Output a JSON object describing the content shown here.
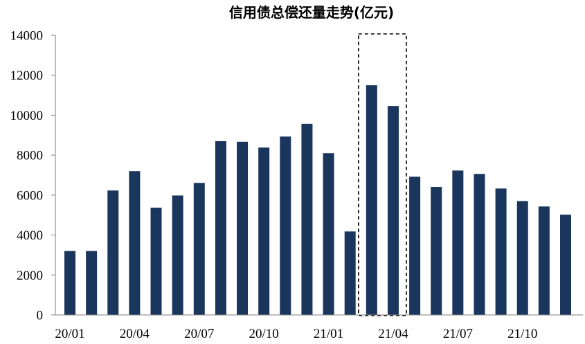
{
  "chart_data": {
    "type": "bar",
    "title": "信用债总偿还量走势(亿元)",
    "xlabel": "",
    "ylabel": "",
    "ylim": [
      0,
      14000
    ],
    "yticks": [
      0,
      2000,
      4000,
      6000,
      8000,
      10000,
      12000,
      14000
    ],
    "xtick_labels": [
      "20/01",
      "20/04",
      "20/07",
      "20/10",
      "21/01",
      "21/04",
      "21/07",
      "21/10"
    ],
    "categories": [
      "20/01",
      "20/02",
      "20/03",
      "20/04",
      "20/05",
      "20/06",
      "20/07",
      "20/08",
      "20/09",
      "20/10",
      "20/11",
      "20/12",
      "21/01",
      "21/02",
      "21/03",
      "21/04",
      "21/05",
      "21/06",
      "21/07",
      "21/08",
      "21/09",
      "21/10",
      "21/11",
      "21/12"
    ],
    "values": [
      3200,
      3200,
      6230,
      7200,
      5370,
      5980,
      6610,
      8700,
      8670,
      8380,
      8930,
      9570,
      8100,
      4180,
      11500,
      10460,
      6920,
      6410,
      7230,
      7060,
      6330,
      5700,
      5430,
      5020
    ],
    "highlight_categories": [
      "21/03",
      "21/04"
    ],
    "grid": false,
    "legend": "none",
    "bar_color": "#1b365d",
    "axis_color": "#7f7f7f"
  }
}
